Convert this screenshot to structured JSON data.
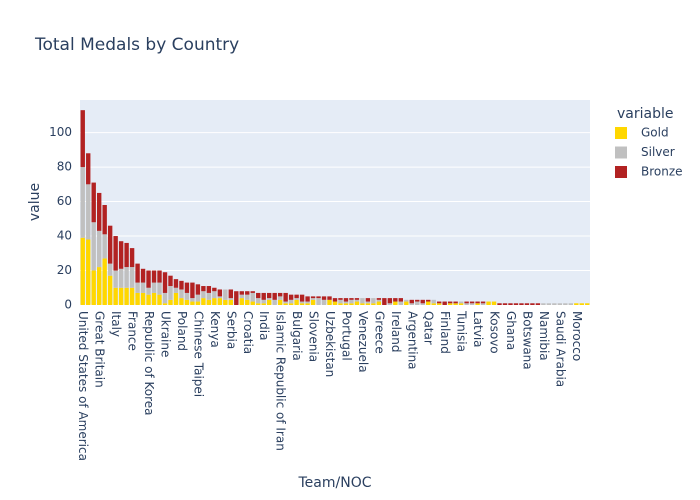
{
  "chart_data": {
    "type": "bar",
    "barmode": "stack",
    "title": "Total Medals by Country",
    "xlabel": "Team/NOC",
    "ylabel": "value",
    "legend_title": "variable",
    "legend": "right",
    "grid": true,
    "categories": [
      "United States of America",
      null,
      null,
      "Great Britain",
      null,
      null,
      "Italy",
      null,
      null,
      "France",
      null,
      null,
      "Republic of Korea",
      null,
      null,
      "Ukraine",
      null,
      null,
      "Poland",
      null,
      null,
      "Chinese Taipei",
      null,
      null,
      "Kenya",
      null,
      null,
      "Serbia",
      null,
      null,
      "Croatia",
      null,
      null,
      "India",
      null,
      null,
      "Islamic Republic of Iran",
      null,
      null,
      "Bulgaria",
      null,
      null,
      "Slovenia",
      null,
      null,
      "Uzbekistan",
      null,
      null,
      "Portugal",
      null,
      null,
      "Venezuela",
      null,
      null,
      "Greece",
      null,
      null,
      "Ireland",
      null,
      null,
      "Argentina",
      null,
      null,
      "Qatar",
      null,
      null,
      "Finland",
      null,
      null,
      "Tunisia",
      null,
      null,
      "Latvia",
      null,
      null,
      "Kosovo",
      null,
      null,
      "Ghana",
      null,
      null,
      "Botswana",
      null,
      null,
      "Namibia",
      null,
      null,
      "Saudi Arabia",
      null,
      null,
      "Morocco",
      null,
      null
    ],
    "series": [
      {
        "name": "Gold",
        "color": "#FFD700",
        "values": [
          39,
          38,
          20,
          22,
          27,
          17,
          10,
          10,
          10,
          10,
          7,
          7,
          6,
          7,
          6,
          1,
          3,
          7,
          4,
          3,
          2,
          2,
          4,
          3,
          4,
          4,
          3,
          3,
          0,
          4,
          3,
          2,
          1,
          1,
          3,
          0,
          3,
          1,
          1,
          3,
          1,
          1,
          3,
          0,
          0,
          3,
          2,
          1,
          1,
          1,
          2,
          1,
          1,
          1,
          2,
          0,
          0,
          2,
          0,
          2,
          0,
          0,
          0,
          2,
          1,
          1,
          0,
          1,
          1,
          1,
          0,
          0,
          1,
          0,
          2,
          2,
          0,
          0,
          0,
          0,
          0,
          0,
          0,
          0,
          0,
          0,
          0,
          0,
          0,
          0,
          1,
          1,
          1
        ]
      },
      {
        "name": "Silver",
        "color": "#C0C0C0",
        "values": [
          41,
          32,
          28,
          21,
          14,
          7,
          10,
          11,
          12,
          12,
          6,
          6,
          4,
          6,
          7,
          6,
          8,
          3,
          5,
          4,
          2,
          4,
          4,
          4,
          4,
          1,
          6,
          1,
          0,
          2,
          3,
          5,
          3,
          2,
          1,
          3,
          2,
          1,
          2,
          1,
          1,
          1,
          1,
          4,
          3,
          0,
          0,
          2,
          1,
          2,
          1,
          3,
          1,
          3,
          1,
          0,
          1,
          0,
          2,
          1,
          1,
          2,
          1,
          0,
          2,
          0,
          0,
          0,
          0,
          1,
          1,
          1,
          0,
          1,
          0,
          0,
          0,
          0,
          0,
          0,
          0,
          0,
          0,
          0,
          1,
          1,
          1,
          1,
          1,
          1,
          0,
          0,
          0
        ]
      },
      {
        "name": "Bronze",
        "color": "#B22222",
        "values": [
          33,
          18,
          23,
          22,
          17,
          22,
          20,
          16,
          14,
          11,
          11,
          8,
          10,
          7,
          7,
          12,
          6,
          5,
          5,
          6,
          9,
          6,
          3,
          4,
          2,
          4,
          0,
          5,
          8,
          2,
          2,
          1,
          3,
          4,
          3,
          4,
          2,
          5,
          3,
          2,
          4,
          3,
          1,
          1,
          2,
          2,
          2,
          1,
          2,
          1,
          1,
          0,
          2,
          0,
          1,
          4,
          3,
          2,
          2,
          0,
          2,
          1,
          2,
          1,
          0,
          1,
          2,
          1,
          1,
          0,
          1,
          1,
          1,
          1,
          0,
          0,
          1,
          1,
          1,
          1,
          1,
          1,
          1,
          1,
          0,
          0,
          0,
          0,
          0,
          0,
          0,
          0,
          0
        ]
      }
    ],
    "ylim": [
      0,
      118.9
    ],
    "yticks": [
      0,
      20,
      40,
      60,
      80,
      100
    ]
  }
}
